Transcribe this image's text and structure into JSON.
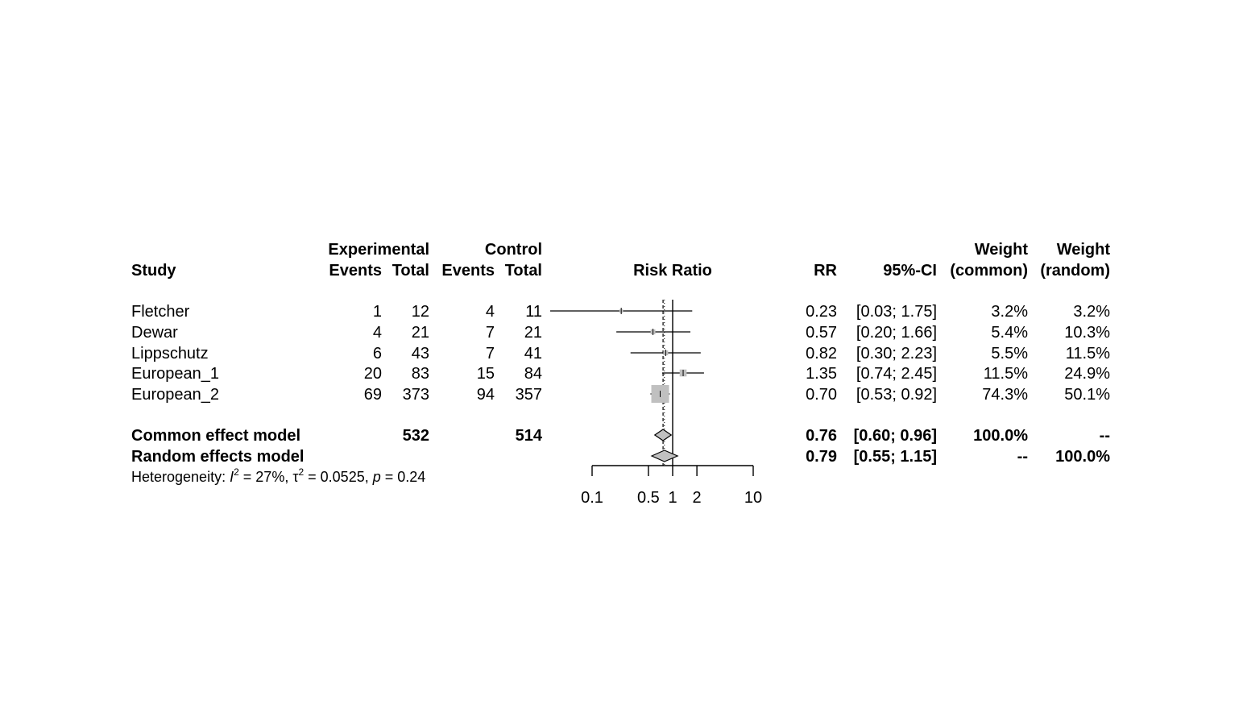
{
  "chart_data": {
    "type": "forest",
    "scale": "log",
    "effect_label": "Risk Ratio",
    "header": {
      "group1": "Experimental",
      "group2": "Control",
      "study": "Study",
      "events": "Events",
      "total": "Total",
      "rr": "RR",
      "ci": "95%-CI",
      "weight": "Weight",
      "common_sub": "(common)",
      "random_sub": "(random)"
    },
    "studies": [
      {
        "name": "Fletcher",
        "e_events": "1",
        "e_total": "12",
        "c_events": "4",
        "c_total": "11",
        "rr": 0.23,
        "lower": 0.03,
        "upper": 1.75,
        "rr_text": "0.23",
        "ci_text": "[0.03; 1.75]",
        "w_common": "3.2%",
        "w_random": "3.2%",
        "w_fraction": 0.032
      },
      {
        "name": "Dewar",
        "e_events": "4",
        "e_total": "21",
        "c_events": "7",
        "c_total": "21",
        "rr": 0.57,
        "lower": 0.2,
        "upper": 1.66,
        "rr_text": "0.57",
        "ci_text": "[0.20; 1.66]",
        "w_common": "5.4%",
        "w_random": "10.3%",
        "w_fraction": 0.054
      },
      {
        "name": "Lippschutz",
        "e_events": "6",
        "e_total": "43",
        "c_events": "7",
        "c_total": "41",
        "rr": 0.82,
        "lower": 0.3,
        "upper": 2.23,
        "rr_text": "0.82",
        "ci_text": "[0.30; 2.23]",
        "w_common": "5.5%",
        "w_random": "11.5%",
        "w_fraction": 0.055
      },
      {
        "name": "European_1",
        "e_events": "20",
        "e_total": "83",
        "c_events": "15",
        "c_total": "84",
        "rr": 1.35,
        "lower": 0.74,
        "upper": 2.45,
        "rr_text": "1.35",
        "ci_text": "[0.74; 2.45]",
        "w_common": "11.5%",
        "w_random": "24.9%",
        "w_fraction": 0.115
      },
      {
        "name": "European_2",
        "e_events": "69",
        "e_total": "373",
        "c_events": "94",
        "c_total": "357",
        "rr": 0.7,
        "lower": 0.53,
        "upper": 0.92,
        "rr_text": "0.70",
        "ci_text": "[0.53; 0.92]",
        "w_common": "74.3%",
        "w_random": "50.1%",
        "w_fraction": 0.743
      }
    ],
    "common": {
      "name": "Common effect model",
      "e_total": "532",
      "c_total": "514",
      "rr": 0.76,
      "lower": 0.6,
      "upper": 0.96,
      "rr_text": "0.76",
      "ci_text": "[0.60; 0.96]",
      "w_common": "100.0%",
      "w_random": "--"
    },
    "random": {
      "name": "Random effects model",
      "rr": 0.79,
      "lower": 0.55,
      "upper": 1.15,
      "rr_text": "0.79",
      "ci_text": "[0.55; 1.15]",
      "w_common": "--",
      "w_random": "100.0%"
    },
    "heterogeneity": {
      "prefix": "Heterogeneity: ",
      "i2_symbol": "I",
      "i2_value": " = 27%, ",
      "tau_symbol": "τ",
      "tau_value": " = 0.0525, ",
      "p_symbol": "p",
      "p_value": " = 0.24",
      "superscript": "2"
    },
    "xaxis": {
      "ticks": [
        0.1,
        0.5,
        1,
        2,
        10
      ],
      "tick_labels": [
        "0.1",
        "0.5",
        "1",
        "2",
        "10"
      ],
      "range": [
        0.1,
        10
      ],
      "reference": 1
    },
    "colors": {
      "box": "#c0c0c0",
      "line": "#000000",
      "diamond": "#c0c0c0"
    }
  }
}
